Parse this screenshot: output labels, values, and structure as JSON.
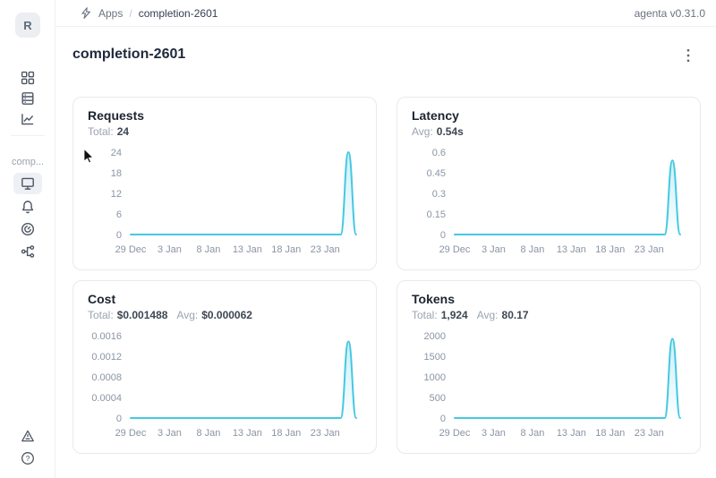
{
  "app": {
    "version_label": "agenta v0.31.0"
  },
  "header": {
    "breadcrumb": {
      "section": "Apps",
      "separator": "/",
      "current": "completion-2601"
    }
  },
  "sidebar": {
    "logo_letter": "R",
    "project_label": "comp...",
    "nav_top_icons": [
      "grid-icon",
      "table-icon",
      "line-chart-icon"
    ],
    "nav_app_icons": [
      "monitor-icon",
      "bell-icon",
      "gauge-icon",
      "tree-icon"
    ],
    "nav_bottom_icons": [
      "triangle-icon",
      "help-icon"
    ],
    "selected_item": "overview"
  },
  "page": {
    "title": "completion-2601"
  },
  "colors": {
    "accent": "#45C8E2",
    "axis_text": "#8A94A4",
    "card_border": "#E7EAEE",
    "icon": "#4D5562"
  },
  "chart_data": [
    {
      "type": "area",
      "title": "Requests",
      "stats": [
        {
          "label": "Total:",
          "value": "24"
        }
      ],
      "x": [
        "29 Dec",
        "30 Dec",
        "31 Dec",
        "1 Jan",
        "2 Jan",
        "3 Jan",
        "4 Jan",
        "5 Jan",
        "6 Jan",
        "7 Jan",
        "8 Jan",
        "9 Jan",
        "10 Jan",
        "11 Jan",
        "12 Jan",
        "13 Jan",
        "14 Jan",
        "15 Jan",
        "16 Jan",
        "17 Jan",
        "18 Jan",
        "19 Jan",
        "20 Jan",
        "21 Jan",
        "22 Jan",
        "23 Jan",
        "24 Jan",
        "25 Jan",
        "26 Jan",
        "27 Jan"
      ],
      "values": [
        0,
        0,
        0,
        0,
        0,
        0,
        0,
        0,
        0,
        0,
        0,
        0,
        0,
        0,
        0,
        0,
        0,
        0,
        0,
        0,
        0,
        0,
        0,
        0,
        0,
        0,
        0,
        0,
        24,
        0
      ],
      "x_tick_labels": [
        "29 Dec",
        "3 Jan",
        "8 Jan",
        "13 Jan",
        "18 Jan",
        "23 Jan"
      ],
      "y_ticks": [
        0,
        6,
        12,
        18,
        24
      ],
      "ylim": [
        0,
        24
      ],
      "grid": false,
      "legend": false
    },
    {
      "type": "area",
      "title": "Latency",
      "stats": [
        {
          "label": "Avg:",
          "value": "0.54s"
        }
      ],
      "x": [
        "29 Dec",
        "30 Dec",
        "31 Dec",
        "1 Jan",
        "2 Jan",
        "3 Jan",
        "4 Jan",
        "5 Jan",
        "6 Jan",
        "7 Jan",
        "8 Jan",
        "9 Jan",
        "10 Jan",
        "11 Jan",
        "12 Jan",
        "13 Jan",
        "14 Jan",
        "15 Jan",
        "16 Jan",
        "17 Jan",
        "18 Jan",
        "19 Jan",
        "20 Jan",
        "21 Jan",
        "22 Jan",
        "23 Jan",
        "24 Jan",
        "25 Jan",
        "26 Jan",
        "27 Jan"
      ],
      "values": [
        0,
        0,
        0,
        0,
        0,
        0,
        0,
        0,
        0,
        0,
        0,
        0,
        0,
        0,
        0,
        0,
        0,
        0,
        0,
        0,
        0,
        0,
        0,
        0,
        0,
        0,
        0,
        0,
        0.54,
        0
      ],
      "x_tick_labels": [
        "29 Dec",
        "3 Jan",
        "8 Jan",
        "13 Jan",
        "18 Jan",
        "23 Jan"
      ],
      "y_ticks": [
        0,
        0.15,
        0.3,
        0.45,
        0.6
      ],
      "ylim": [
        0,
        0.6
      ],
      "grid": false,
      "legend": false
    },
    {
      "type": "area",
      "title": "Cost",
      "stats": [
        {
          "label": "Total:",
          "value": "$0.001488"
        },
        {
          "label": "Avg:",
          "value": "$0.000062"
        }
      ],
      "x": [
        "29 Dec",
        "30 Dec",
        "31 Dec",
        "1 Jan",
        "2 Jan",
        "3 Jan",
        "4 Jan",
        "5 Jan",
        "6 Jan",
        "7 Jan",
        "8 Jan",
        "9 Jan",
        "10 Jan",
        "11 Jan",
        "12 Jan",
        "13 Jan",
        "14 Jan",
        "15 Jan",
        "16 Jan",
        "17 Jan",
        "18 Jan",
        "19 Jan",
        "20 Jan",
        "21 Jan",
        "22 Jan",
        "23 Jan",
        "24 Jan",
        "25 Jan",
        "26 Jan",
        "27 Jan"
      ],
      "values": [
        0,
        0,
        0,
        0,
        0,
        0,
        0,
        0,
        0,
        0,
        0,
        0,
        0,
        0,
        0,
        0,
        0,
        0,
        0,
        0,
        0,
        0,
        0,
        0,
        0,
        0,
        0,
        0,
        0.001488,
        0
      ],
      "x_tick_labels": [
        "29 Dec",
        "3 Jan",
        "8 Jan",
        "13 Jan",
        "18 Jan",
        "23 Jan"
      ],
      "y_ticks": [
        0,
        0.0004,
        0.0008,
        0.0012,
        0.0016
      ],
      "ylim": [
        0,
        0.0016
      ],
      "grid": false,
      "legend": false
    },
    {
      "type": "area",
      "title": "Tokens",
      "stats": [
        {
          "label": "Total:",
          "value": "1,924"
        },
        {
          "label": "Avg:",
          "value": "80.17"
        }
      ],
      "x": [
        "29 Dec",
        "30 Dec",
        "31 Dec",
        "1 Jan",
        "2 Jan",
        "3 Jan",
        "4 Jan",
        "5 Jan",
        "6 Jan",
        "7 Jan",
        "8 Jan",
        "9 Jan",
        "10 Jan",
        "11 Jan",
        "12 Jan",
        "13 Jan",
        "14 Jan",
        "15 Jan",
        "16 Jan",
        "17 Jan",
        "18 Jan",
        "19 Jan",
        "20 Jan",
        "21 Jan",
        "22 Jan",
        "23 Jan",
        "24 Jan",
        "25 Jan",
        "26 Jan",
        "27 Jan"
      ],
      "values": [
        0,
        0,
        0,
        0,
        0,
        0,
        0,
        0,
        0,
        0,
        0,
        0,
        0,
        0,
        0,
        0,
        0,
        0,
        0,
        0,
        0,
        0,
        0,
        0,
        0,
        0,
        0,
        0,
        1924,
        0
      ],
      "x_tick_labels": [
        "29 Dec",
        "3 Jan",
        "8 Jan",
        "13 Jan",
        "18 Jan",
        "23 Jan"
      ],
      "y_ticks": [
        0,
        500,
        1000,
        1500,
        2000
      ],
      "ylim": [
        0,
        2000
      ],
      "grid": false,
      "legend": false
    }
  ]
}
